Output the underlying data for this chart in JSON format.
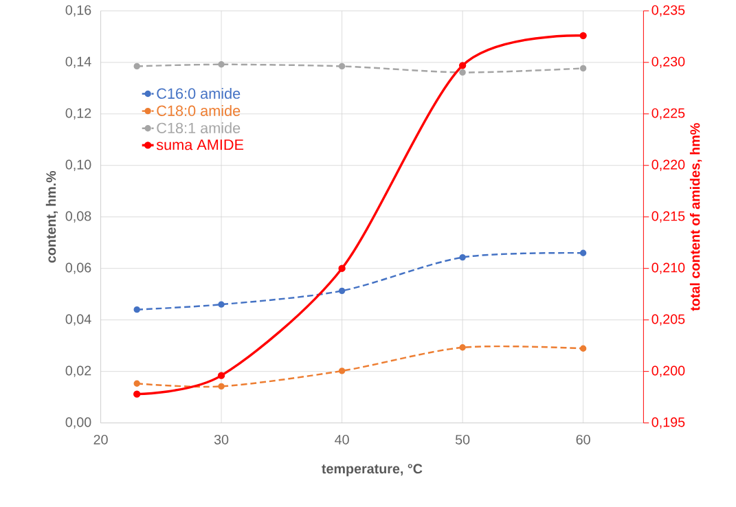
{
  "chart_data": {
    "type": "line",
    "xlabel": "temperature, °C",
    "ylabel": "content, hm.%",
    "y2label": "total content of amides, hm%",
    "x": [
      23,
      30,
      40,
      50,
      60
    ],
    "series": [
      {
        "name": "C16:0 amide",
        "color": "#4472c4",
        "line_style": "dashed",
        "values": [
          0.044,
          0.046,
          0.0513,
          0.0643,
          0.066
        ]
      },
      {
        "name": "C18:0 amide",
        "color": "#ed7d31",
        "line_style": "dashed",
        "values": [
          0.0153,
          0.0142,
          0.0202,
          0.0293,
          0.0289
        ]
      },
      {
        "name": "C18:1 amide",
        "color": "#a5a5a5",
        "line_style": "dashed",
        "values": [
          0.1385,
          0.1392,
          0.1385,
          0.1361,
          0.1377
        ]
      },
      {
        "name": "suma AMIDE",
        "color": "#ff0000",
        "line_style": "solid",
        "axis": "y2",
        "values": [
          0.1978,
          0.1996,
          0.21,
          0.2297,
          0.2326
        ]
      }
    ],
    "xlim": [
      20,
      65
    ],
    "xticks": [
      20,
      30,
      40,
      50,
      60
    ],
    "ylim": [
      0,
      0.16
    ],
    "yticks": [
      {
        "value": 0,
        "label": "0,00"
      },
      {
        "value": 0.02,
        "label": "0,02"
      },
      {
        "value": 0.04,
        "label": "0,04"
      },
      {
        "value": 0.06,
        "label": "0,06"
      },
      {
        "value": 0.08,
        "label": "0,08"
      },
      {
        "value": 0.1,
        "label": "0,10"
      },
      {
        "value": 0.12,
        "label": "0,12"
      },
      {
        "value": 0.14,
        "label": "0,14"
      },
      {
        "value": 0.16,
        "label": "0,16"
      }
    ],
    "y2lim": [
      0.195,
      0.235
    ],
    "y2ticks": [
      {
        "value": 0.195,
        "label": "0,195"
      },
      {
        "value": 0.2,
        "label": "0,200"
      },
      {
        "value": 0.205,
        "label": "0,205"
      },
      {
        "value": 0.21,
        "label": "0,210"
      },
      {
        "value": 0.215,
        "label": "0,215"
      },
      {
        "value": 0.22,
        "label": "0,220"
      },
      {
        "value": 0.225,
        "label": "0,225"
      },
      {
        "value": 0.23,
        "label": "0,230"
      },
      {
        "value": 0.235,
        "label": "0,235"
      }
    ],
    "grid": true,
    "legend": "top left",
    "marker": "circle"
  }
}
